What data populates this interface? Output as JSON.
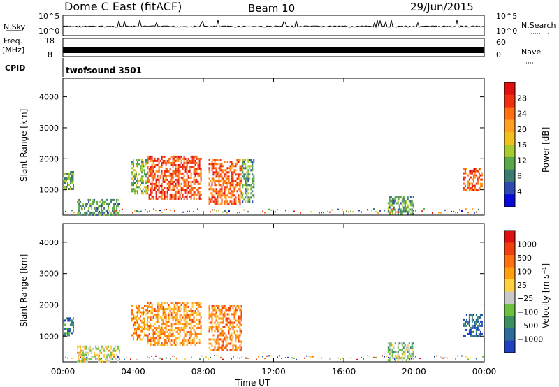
{
  "header": {
    "station": "Dome C East (fitACF)",
    "beam": "Beam 10",
    "date": "29/Jun/2015"
  },
  "top_panels": {
    "nsky_label": "N.Sky",
    "nsky_ticks": [
      "10^5",
      "10^0"
    ],
    "nsearch_label": "N.Search",
    "nsearch_ticks": [
      "10^5",
      "10^0"
    ],
    "freq_label": "Freq.",
    "freq_unit": "[MHz]",
    "freq_ticks": [
      "18",
      "8"
    ],
    "nave_label": "Nave",
    "nave_ticks": [
      "60",
      "0"
    ],
    "cpid_label": "CPID",
    "cpid_value": "twofsound 3501"
  },
  "chart_data": [
    {
      "type": "heatmap",
      "name": "Power",
      "ylabel": "Slant Range [km]",
      "yticks": [
        "4000",
        "3000",
        "2000",
        "1000"
      ],
      "ylim": [
        180,
        4600
      ],
      "xlim": [
        0,
        24
      ],
      "colorbar_label": "Power [dB]",
      "colorbar_ticks": [
        "28",
        "24",
        "20",
        "16",
        "12",
        "8",
        "4"
      ],
      "colorbar_colors": [
        "#0a0ad8",
        "#2e4ab0",
        "#3d7a70",
        "#5aa84a",
        "#a8cc30",
        "#f0c020",
        "#ffa020",
        "#ff7010",
        "#f03010",
        "#e01010"
      ],
      "regions": [
        {
          "t0": 4.8,
          "t1": 7.9,
          "r0": 700,
          "r1": 2100,
          "level": 0.85
        },
        {
          "t0": 8.3,
          "t1": 10.2,
          "r0": 550,
          "r1": 2000,
          "level": 0.8
        },
        {
          "t0": 3.9,
          "t1": 4.8,
          "r0": 900,
          "r1": 2000,
          "level": 0.4
        },
        {
          "t0": 10.2,
          "t1": 10.9,
          "r0": 600,
          "r1": 2000,
          "level": 0.3
        },
        {
          "t0": 22.8,
          "t1": 23.9,
          "r0": 1000,
          "r1": 1700,
          "level": 0.8
        },
        {
          "t0": 0.0,
          "t1": 0.6,
          "r0": 1000,
          "r1": 1600,
          "level": 0.35
        },
        {
          "t0": 0.8,
          "t1": 3.2,
          "r0": 200,
          "r1": 700,
          "level": 0.3
        },
        {
          "t0": 18.5,
          "t1": 20.0,
          "r0": 200,
          "r1": 800,
          "level": 0.3
        }
      ]
    },
    {
      "type": "heatmap",
      "name": "Velocity",
      "ylabel": "Slant Range [km]",
      "yticks": [
        "4000",
        "3000",
        "2000",
        "1000"
      ],
      "ylim": [
        180,
        4600
      ],
      "xlim": [
        0,
        24
      ],
      "xlabel": "Time UT",
      "xticks": [
        "00:00",
        "04:00",
        "08:00",
        "12:00",
        "16:00",
        "20:00",
        "00:00"
      ],
      "colorbar_label": "Velocity [m s⁻¹]",
      "colorbar_ticks": [
        "1000",
        "500",
        "100",
        "25",
        "−25",
        "−100",
        "−500",
        "−1000"
      ],
      "colorbar_colors": [
        "#2040c0",
        "#2c6c9c",
        "#3c9060",
        "#6cc040",
        "#c8c8c8",
        "#ffd040",
        "#ffa010",
        "#ff7010",
        "#f04010",
        "#e01010"
      ],
      "regions": [
        {
          "t0": 4.8,
          "t1": 7.9,
          "r0": 700,
          "r1": 2100,
          "level": 0.7
        },
        {
          "t0": 8.3,
          "t1": 10.2,
          "r0": 550,
          "r1": 2000,
          "level": 0.75
        },
        {
          "t0": 3.9,
          "t1": 4.8,
          "r0": 900,
          "r1": 2000,
          "level": 0.7
        },
        {
          "t0": 22.8,
          "t1": 23.9,
          "r0": 1000,
          "r1": 1700,
          "level": 0.1
        },
        {
          "t0": 0.0,
          "t1": 0.6,
          "r0": 1000,
          "r1": 1600,
          "level": 0.15
        },
        {
          "t0": 0.8,
          "t1": 3.2,
          "r0": 200,
          "r1": 700,
          "level": 0.45
        },
        {
          "t0": 18.5,
          "t1": 20.0,
          "r0": 200,
          "r1": 800,
          "level": 0.35
        }
      ]
    }
  ]
}
